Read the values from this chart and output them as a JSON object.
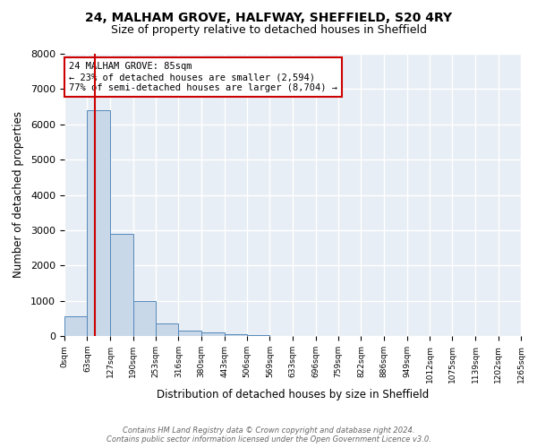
{
  "title": "24, MALHAM GROVE, HALFWAY, SHEFFIELD, S20 4RY",
  "subtitle": "Size of property relative to detached houses in Sheffield",
  "xlabel": "Distribution of detached houses by size in Sheffield",
  "ylabel": "Number of detached properties",
  "bar_color": "#c8d8e8",
  "bar_edge_color": "#5588bb",
  "bins": [
    0,
    63,
    127,
    190,
    253,
    316,
    380,
    443,
    506,
    569,
    633,
    696,
    759,
    822,
    886,
    949,
    1012,
    1075,
    1139,
    1202,
    1265
  ],
  "bin_labels": [
    "0sqm",
    "63sqm",
    "127sqm",
    "190sqm",
    "253sqm",
    "316sqm",
    "380sqm",
    "443sqm",
    "506sqm",
    "569sqm",
    "633sqm",
    "696sqm",
    "759sqm",
    "822sqm",
    "886sqm",
    "949sqm",
    "1012sqm",
    "1075sqm",
    "1139sqm",
    "1202sqm",
    "1265sqm"
  ],
  "bar_heights": [
    560,
    6400,
    2900,
    1000,
    350,
    150,
    100,
    50,
    30,
    0,
    0,
    0,
    0,
    0,
    0,
    0,
    0,
    0,
    0,
    0
  ],
  "property_size": 85,
  "property_line_color": "#cc0000",
  "ylim": [
    0,
    8000
  ],
  "annotation_line1": "24 MALHAM GROVE: 85sqm",
  "annotation_line2": "← 23% of detached houses are smaller (2,594)",
  "annotation_line3": "77% of semi-detached houses are larger (8,704) →",
  "annotation_box_color": "#ffffff",
  "annotation_box_edge_color": "#cc0000",
  "footer_line1": "Contains HM Land Registry data © Crown copyright and database right 2024.",
  "footer_line2": "Contains public sector information licensed under the Open Government Licence v3.0.",
  "background_color": "#ffffff",
  "plot_background_color": "#e8eef5",
  "grid_color": "#ffffff",
  "title_fontsize": 10,
  "subtitle_fontsize": 9
}
